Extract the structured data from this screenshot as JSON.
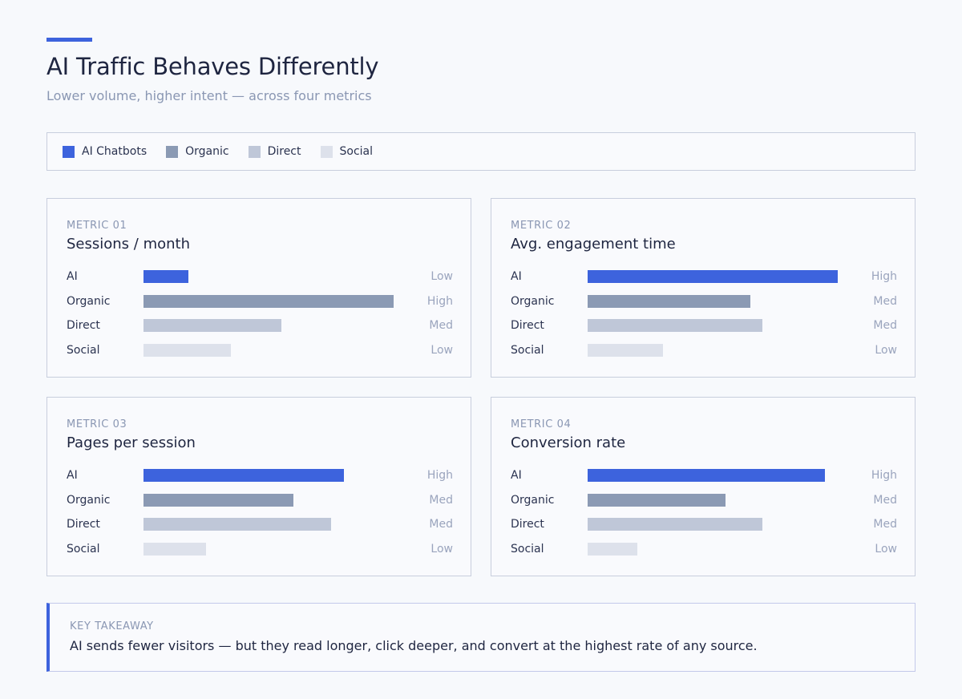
{
  "header": {
    "title": "AI Traffic Behaves Differently",
    "subtitle": "Lower volume, higher intent — across four metrics"
  },
  "legend": {
    "items": [
      {
        "label": "AI Chatbots",
        "color": "#3d63dd"
      },
      {
        "label": "Organic",
        "color": "#8b9ab4"
      },
      {
        "label": "Direct",
        "color": "#bfc7d8"
      },
      {
        "label": "Social",
        "color": "#dde1eb"
      }
    ]
  },
  "chart_data": [
    {
      "type": "bar",
      "eyebrow": "METRIC 01",
      "title": "Sessions / month",
      "categories": [
        "AI",
        "Organic",
        "Direct",
        "Social"
      ],
      "values": [
        0.18,
        1.0,
        0.55,
        0.35
      ],
      "levels": [
        "Low",
        "High",
        "Med",
        "Low"
      ]
    },
    {
      "type": "bar",
      "eyebrow": "METRIC 02",
      "title": "Avg. engagement time",
      "categories": [
        "AI",
        "Organic",
        "Direct",
        "Social"
      ],
      "values": [
        1.0,
        0.65,
        0.7,
        0.3
      ],
      "levels": [
        "High",
        "Med",
        "Med",
        "Low"
      ]
    },
    {
      "type": "bar",
      "eyebrow": "METRIC 03",
      "title": "Pages per session",
      "categories": [
        "AI",
        "Organic",
        "Direct",
        "Social"
      ],
      "values": [
        0.8,
        0.6,
        0.75,
        0.25
      ],
      "levels": [
        "High",
        "Med",
        "Med",
        "Low"
      ]
    },
    {
      "type": "bar",
      "eyebrow": "METRIC 04",
      "title": "Conversion rate",
      "categories": [
        "AI",
        "Organic",
        "Direct",
        "Social"
      ],
      "values": [
        0.95,
        0.55,
        0.7,
        0.2
      ],
      "levels": [
        "High",
        "Med",
        "Med",
        "Low"
      ]
    }
  ],
  "takeaway": {
    "eyebrow": "KEY TAKEAWAY",
    "text": "AI sends fewer visitors — but they read longer, click deeper, and convert at the highest rate of any source."
  }
}
